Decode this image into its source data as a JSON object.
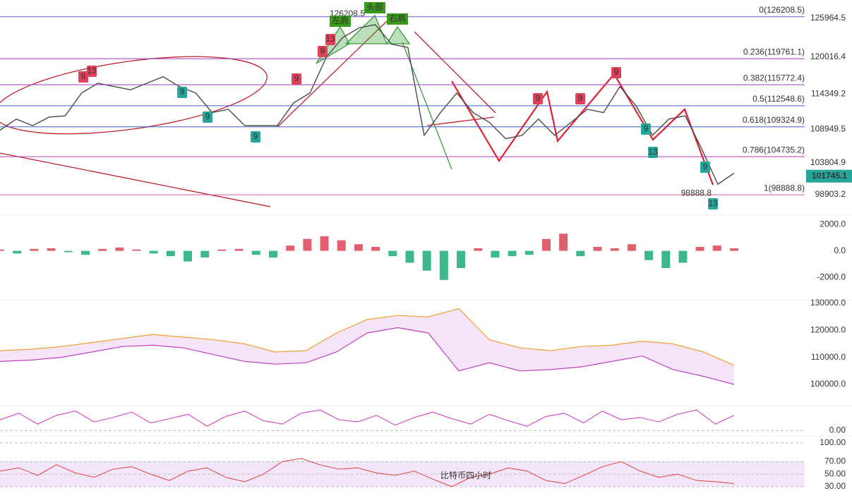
{
  "chart_data": [
    {
      "type": "line",
      "name": "price",
      "values": [
        108800,
        110500,
        109500,
        110800,
        111000,
        114500,
        116000,
        115500,
        115000,
        116000,
        117000,
        115500,
        114500,
        111500,
        112000,
        109500,
        109500,
        109500,
        113000,
        114500,
        120000,
        123000,
        124500,
        125000,
        122000,
        121500,
        108000,
        111500,
        114500,
        111500,
        110000,
        107500,
        108000,
        110500,
        108000,
        110000,
        112000,
        111500,
        115500,
        112500,
        108000,
        110500,
        111000,
        106000,
        100500,
        102200
      ],
      "color": "#4a4a4a",
      "ylim": [
        96300,
        128780
      ],
      "yticks": [
        125964.5,
        120016.4,
        114349.2,
        108949.5,
        103804.9,
        98903.2
      ],
      "levels": [
        {
          "value": 126208.5,
          "label": "0(126208.5)",
          "color": "#6b5fd3"
        },
        {
          "value": 119761.1,
          "label": "0.236(119761.1)",
          "color": "#9c3fc4"
        },
        {
          "value": 115772.4,
          "label": "0.382(115772.4)",
          "color": "#9c3fc4"
        },
        {
          "value": 112548.6,
          "label": "0.5(112548.6)",
          "color": "#3d62c9"
        },
        {
          "value": 109324.9,
          "label": "0.618(109324.9)",
          "color": "#3d62c9"
        },
        {
          "value": 104735.2,
          "label": "0.786(104735.2)",
          "color": "#b63fb6"
        },
        {
          "value": 98888.8,
          "label": "1(98888.8)",
          "color": "#e0559a"
        }
      ],
      "last_price": 101745.1,
      "high_label": {
        "value": 126208.5,
        "label": "126208.5"
      },
      "low_label": {
        "value": 98888.8,
        "label": "98888.8"
      },
      "pattern_labels": [
        "左肩",
        "头部",
        "右肩"
      ],
      "td_labels": [
        "9",
        "13",
        "9",
        "9",
        "9",
        "13",
        "9",
        "9",
        "9",
        "9",
        "9",
        "9",
        "13",
        "9",
        "13"
      ]
    },
    {
      "type": "bar",
      "name": "macd",
      "values": [
        100,
        -200,
        150,
        200,
        -100,
        -300,
        150,
        250,
        100,
        -200,
        -400,
        -800,
        -500,
        100,
        150,
        -300,
        -500,
        400,
        900,
        1100,
        800,
        500,
        300,
        -400,
        -900,
        -1500,
        -2200,
        -1300,
        200,
        -500,
        -400,
        -300,
        900,
        1300,
        -400,
        300,
        200,
        500,
        -700,
        -1300,
        -900,
        300,
        400,
        200
      ],
      "ylim": [
        -3700,
        2700
      ],
      "yticks": [
        {
          "value": 2000,
          "label": "2000.0"
        },
        {
          "value": 0,
          "label": "0.0"
        },
        {
          "value": -2000,
          "label": "-2000.0"
        }
      ]
    },
    {
      "type": "band",
      "name": "boll",
      "series": [
        {
          "name": "upper",
          "color": "#f0a030",
          "values": [
            112500,
            113000,
            114000,
            115500,
            117000,
            118500,
            117500,
            116500,
            115000,
            112000,
            112500,
            119000,
            124000,
            125500,
            125000,
            128000,
            116500,
            113500,
            112500,
            114000,
            114500,
            116000,
            115000,
            112000,
            107000
          ]
        },
        {
          "name": "lower",
          "color": "#c040c0",
          "values": [
            108500,
            109000,
            110000,
            112000,
            114000,
            114500,
            113500,
            111000,
            108500,
            107500,
            108000,
            112000,
            119000,
            121000,
            119000,
            105000,
            108000,
            105000,
            105500,
            106500,
            108500,
            110500,
            105500,
            103000,
            100000
          ]
        }
      ],
      "ylim": [
        92950,
        131300
      ],
      "yticks": [
        {
          "value": 130000,
          "label": "130000.0"
        },
        {
          "value": 120000,
          "label": "120000.0"
        },
        {
          "value": 110000,
          "label": "110000.0"
        },
        {
          "value": 100000,
          "label": "100000.0"
        }
      ]
    },
    {
      "type": "line",
      "name": "kdj",
      "values": [
        50,
        80,
        30,
        70,
        90,
        40,
        60,
        85,
        35,
        55,
        75,
        20,
        65,
        90,
        45,
        30,
        80,
        95,
        50,
        40,
        70,
        25,
        60,
        85,
        55,
        30,
        75,
        45,
        20,
        65,
        80,
        35,
        90,
        50,
        60,
        40,
        75,
        95,
        30,
        70
      ],
      "color": "#d040c0",
      "ylim": [
        -15,
        115
      ],
      "yticks": [
        {
          "value": 0,
          "label": "0.00"
        }
      ]
    },
    {
      "type": "line",
      "name": "rsi",
      "values": [
        55,
        60,
        48,
        65,
        52,
        45,
        58,
        62,
        50,
        40,
        55,
        60,
        45,
        38,
        50,
        70,
        75,
        65,
        58,
        60,
        52,
        48,
        55,
        42,
        30,
        45,
        50,
        60,
        55,
        40,
        35,
        48,
        62,
        70,
        55,
        45,
        50,
        40,
        38,
        35
      ],
      "color": "#e05050",
      "ylim": [
        12,
        111
      ],
      "yticks": [
        {
          "value": 100,
          "label": "100.00"
        },
        {
          "value": 70,
          "label": "70.00"
        },
        {
          "value": 50,
          "label": "50.00"
        },
        {
          "value": 30,
          "label": "30.00"
        }
      ]
    }
  ],
  "watermark": "比特币四小时"
}
